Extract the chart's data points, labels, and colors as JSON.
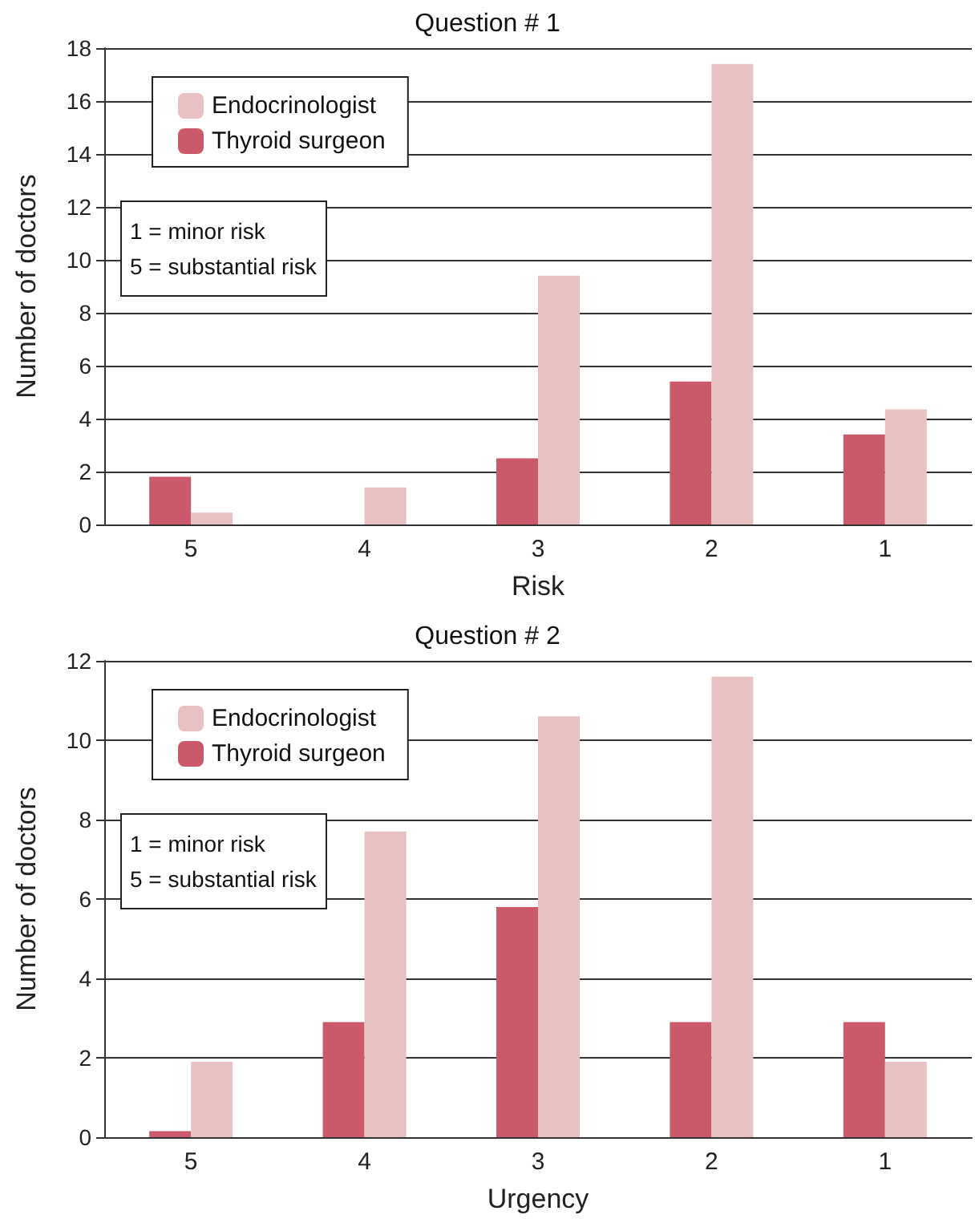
{
  "chart_data": [
    {
      "type": "bar",
      "title": "Question # 1",
      "xlabel": "Risk",
      "ylabel": "Number of doctors",
      "categories": [
        "5",
        "4",
        "3",
        "2",
        "1"
      ],
      "series": [
        {
          "name": "Thyroid surgeon",
          "color": "#c9596b",
          "values": [
            1.8,
            0,
            2.5,
            5.4,
            3.4
          ]
        },
        {
          "name": "Endocrinologist",
          "color": "#e8c1c3",
          "values": [
            0.45,
            1.4,
            9.4,
            17.4,
            4.35
          ]
        }
      ],
      "ylim": [
        0,
        18
      ],
      "yticks": [
        0,
        2,
        4,
        6,
        8,
        10,
        12,
        14,
        16,
        18
      ],
      "grid": "y",
      "legend": "top left",
      "annotations": [
        "1 = minor risk\n5 = substantial risk"
      ]
    },
    {
      "type": "bar",
      "title": "Question # 2",
      "xlabel": "Urgency",
      "ylabel": "Number of doctors",
      "categories": [
        "5",
        "4",
        "3",
        "2",
        "1"
      ],
      "series": [
        {
          "name": "Thyroid surgeon",
          "color": "#c9596b",
          "values": [
            0.15,
            2.9,
            5.8,
            2.9,
            2.9
          ]
        },
        {
          "name": "Endocrinologist",
          "color": "#e8c1c3",
          "values": [
            1.9,
            7.7,
            10.6,
            11.6,
            1.9
          ]
        }
      ],
      "ylim": [
        0,
        12
      ],
      "yticks": [
        0,
        2,
        4,
        6,
        8,
        10,
        12
      ],
      "grid": "y",
      "legend": "top left",
      "annotations": [
        "1 = minor risk\n5 = substantial risk"
      ]
    }
  ]
}
